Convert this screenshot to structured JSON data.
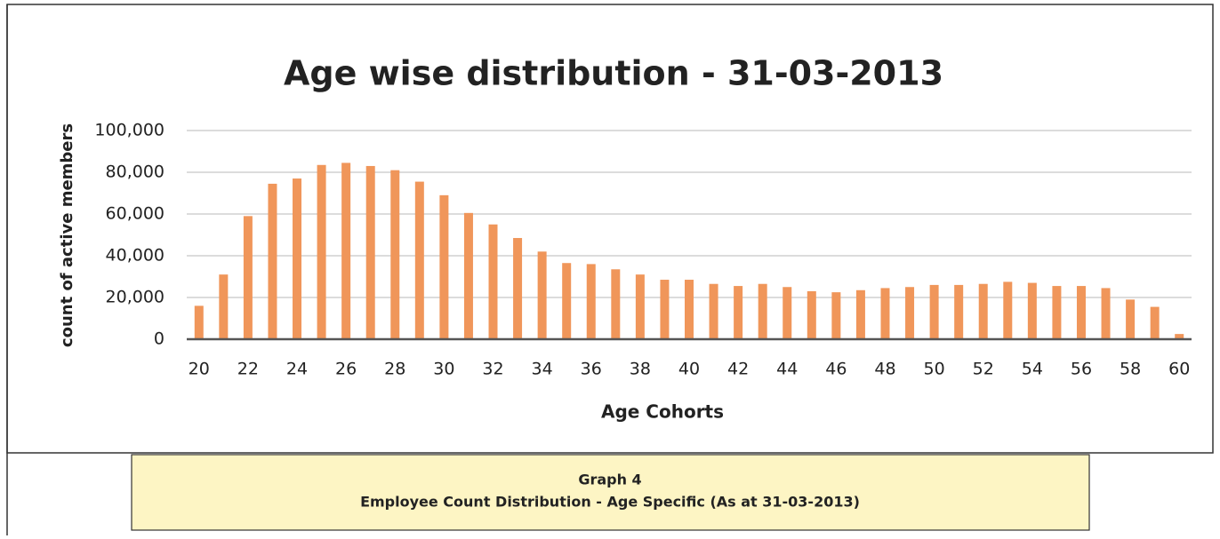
{
  "chart_data": {
    "type": "bar",
    "title": "Age wise distribution - 31-03-2013",
    "x_label": "Age Cohorts",
    "y_label": "count of active members",
    "categories": [
      "20",
      null,
      "22",
      null,
      "24",
      null,
      "26",
      null,
      "28",
      null,
      "30",
      null,
      "32",
      null,
      "34",
      null,
      "36",
      null,
      "38",
      null,
      "40",
      null,
      "42",
      null,
      "44",
      null,
      "46",
      null,
      "48",
      null,
      "50",
      null,
      "52",
      null,
      "54",
      null,
      "56",
      null,
      "58",
      null,
      "60"
    ],
    "values": [
      16000,
      31000,
      59000,
      74500,
      77000,
      83500,
      84500,
      83000,
      81000,
      75500,
      69000,
      60500,
      55000,
      48500,
      42000,
      36500,
      36000,
      33500,
      31000,
      28500,
      28500,
      26500,
      25500,
      26500,
      25000,
      23000,
      22500,
      23500,
      24500,
      25000,
      26000,
      26000,
      26500,
      27500,
      27000,
      25500,
      25500,
      24500,
      19000,
      15500,
      2500
    ],
    "color": "#f0965a",
    "ylim": [
      0,
      100000
    ],
    "yticks": [
      0,
      {
        "value": 20000,
        "label": "20,000"
      },
      {
        "value": 40000,
        "label": "40,000"
      },
      {
        "value": 60000,
        "label": "60,000"
      },
      {
        "value": 80000,
        "label": "80,000"
      },
      {
        "value": 100000,
        "label": "100,000"
      }
    ],
    "grid": true
  },
  "caption": {
    "label": "Graph 4",
    "text": "Employee Count Distribution - Age Specific (As at 31-03-2013)"
  }
}
